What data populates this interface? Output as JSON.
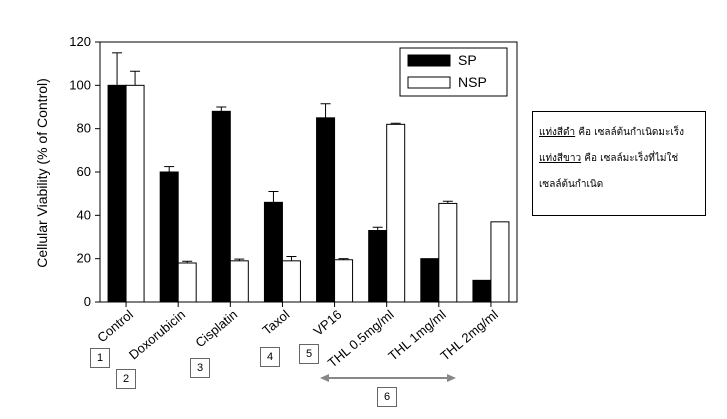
{
  "chart_data": {
    "type": "bar",
    "ylabel": "Cellular Viability (% of Control)",
    "xlabel": "",
    "ylim": [
      0,
      120
    ],
    "yticks": [
      0,
      20,
      40,
      60,
      80,
      100,
      120
    ],
    "categories": [
      "Control",
      "Doxorubicin",
      "Cisplatin",
      "Taxol",
      "VP16",
      "THL 0.5mg/ml",
      "THL 1mg/ml",
      "THL 2mg/ml"
    ],
    "series": [
      {
        "name": "SP",
        "color": "#000000",
        "values": [
          100,
          60,
          88,
          46,
          85,
          33,
          20,
          10
        ],
        "errors": [
          15,
          2.5,
          2,
          5,
          6.5,
          1.5,
          0,
          0
        ]
      },
      {
        "name": "NSP",
        "color": "#ffffff",
        "values": [
          100,
          18,
          19,
          19,
          19.5,
          82,
          45.5,
          37
        ],
        "errors": [
          6.5,
          0.8,
          0.8,
          2,
          0.5,
          0.5,
          1,
          0
        ]
      }
    ],
    "legend_position": "top-right",
    "grid": false
  },
  "annotations": {
    "number_boxes": [
      "1",
      "2",
      "3",
      "4",
      "5",
      "6"
    ],
    "note_line1_underlined": "แท่งสีดำ",
    "note_line1_rest": " คือ เซลล์ต้นกำเนิดมะเร็ง",
    "note_line2_underlined": "แท่งสีขาว",
    "note_line2_rest": " คือ เซลล์มะเร็งที่ไม่ใช่",
    "note_line3": "เซลล์ต้นกำเนิด"
  }
}
